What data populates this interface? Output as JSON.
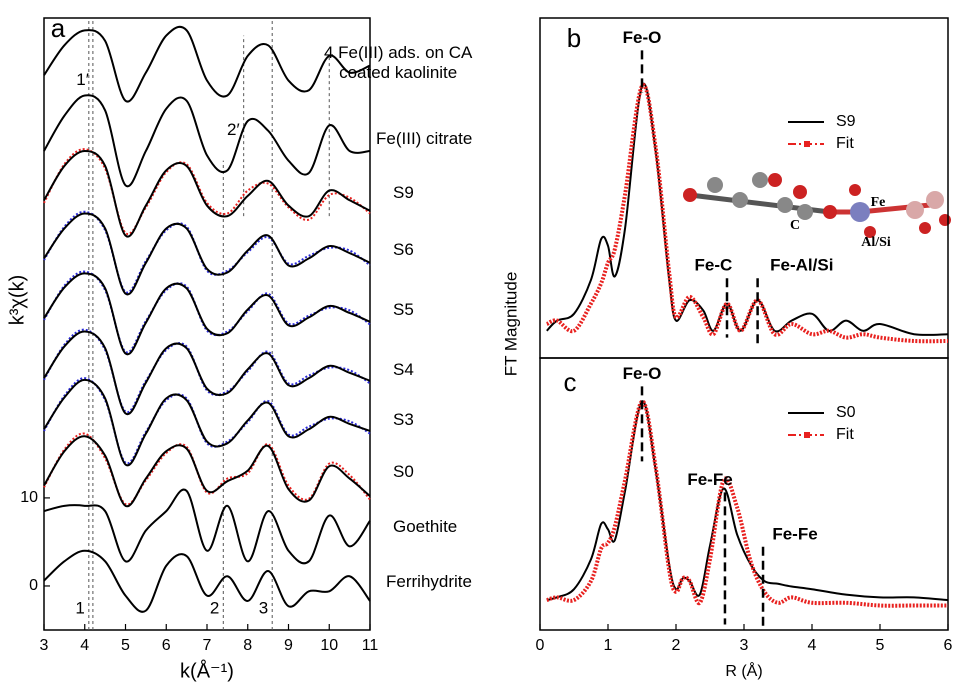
{
  "chart_data": [
    {
      "type": "line",
      "panel_label": "a",
      "xlabel": "k(Å⁻¹)",
      "ylabel": "k³χ(k)",
      "xlim": [
        3,
        11
      ],
      "ylim": [
        -5,
        64.5
      ],
      "xticks": [
        3,
        4,
        5,
        6,
        7,
        8,
        9,
        10,
        11
      ],
      "yticks": [
        0,
        10
      ],
      "x": [
        3,
        3.5,
        4,
        4.5,
        5,
        5.5,
        6,
        6.5,
        7,
        7.5,
        8,
        8.5,
        9,
        9.5,
        10,
        10.5,
        11
      ],
      "vlines": [
        {
          "x": 4.1,
          "label": "1",
          "y": -2.6,
          "y_range": [
            -5,
            64.5
          ]
        },
        {
          "x": 4.2,
          "label": "1′",
          "y": 57.4,
          "y_range": [
            -5,
            64.5
          ]
        },
        {
          "x": 7.4,
          "label": "2",
          "y": -2.6,
          "y_range": [
            -5,
            48.3
          ]
        },
        {
          "x": 7.9,
          "label": "2′",
          "y": 51.7,
          "y_range": [
            42.0,
            62.5
          ]
        },
        {
          "x": 8.6,
          "label": "3",
          "y": -2.6,
          "y_range": [
            -5,
            64.5
          ]
        },
        {
          "x": 10.0,
          "y_range": [
            42.0,
            60.2
          ]
        }
      ],
      "series": [
        {
          "name": "4 Fe(III) ads. on CA\ncoated kaolinite",
          "color": "#000000",
          "style": "solid",
          "values": [
            58.0,
            61.4,
            63.1,
            61.9,
            55.1,
            58.3,
            62.5,
            63.1,
            57.4,
            55.7,
            60.2,
            61.4,
            57.4,
            56.3,
            60.2,
            58.3,
            59.1
          ]
        },
        {
          "name": "Fe(III) citrate",
          "color": "#000000",
          "style": "solid",
          "values": [
            49.4,
            53.4,
            55.7,
            54.0,
            45.5,
            49.4,
            54.2,
            55.1,
            48.9,
            47.2,
            52.8,
            51.7,
            48.3,
            46.9,
            52.3,
            49.4,
            49.4
          ]
        },
        {
          "color": "#e8211f",
          "style": "dotted",
          "values": [
            43.5,
            47.9,
            49.6,
            47.4,
            40.1,
            43.0,
            47.0,
            47.9,
            43.5,
            42.3,
            44.9,
            45.7,
            43.0,
            41.6,
            44.4,
            44.1,
            42.3
          ]
        },
        {
          "name": "S9",
          "color": "#000000",
          "style": "solid",
          "values": [
            43.8,
            47.7,
            49.4,
            47.7,
            39.8,
            43.2,
            47.2,
            47.7,
            43.2,
            42.0,
            44.3,
            46.0,
            43.2,
            42.0,
            44.9,
            43.8,
            42.6
          ]
        },
        {
          "color": "#2a2ad8",
          "style": "dotted",
          "values": [
            37.0,
            40.8,
            42.5,
            40.4,
            33.4,
            36.9,
            40.4,
            40.8,
            35.8,
            35.8,
            37.9,
            39.6,
            36.6,
            37.5,
            38.4,
            38.1,
            36.4
          ]
        },
        {
          "name": "S6",
          "color": "#000000",
          "style": "solid",
          "values": [
            37.2,
            40.6,
            42.3,
            40.6,
            33.2,
            36.7,
            40.6,
            40.6,
            36.0,
            35.6,
            38.1,
            39.8,
            36.4,
            37.2,
            38.6,
            37.8,
            36.7
          ]
        },
        {
          "color": "#2a2ad8",
          "style": "dotted",
          "values": [
            30.2,
            34.1,
            35.7,
            33.6,
            26.6,
            30.1,
            33.6,
            34.0,
            29.0,
            28.9,
            31.2,
            33.2,
            29.8,
            30.7,
            31.6,
            31.3,
            29.7
          ]
        },
        {
          "name": "S5",
          "color": "#000000",
          "style": "solid",
          "values": [
            30.4,
            33.9,
            35.5,
            33.8,
            26.4,
            29.9,
            33.8,
            33.8,
            29.2,
            28.7,
            31.4,
            33.0,
            29.6,
            30.5,
            31.8,
            31.0,
            30.0
          ]
        },
        {
          "color": "#2a2ad8",
          "style": "dotted",
          "values": [
            23.4,
            27.4,
            29.1,
            26.8,
            19.8,
            23.3,
            26.8,
            27.2,
            22.2,
            22.1,
            24.4,
            26.6,
            23.0,
            23.9,
            24.8,
            24.5,
            23.0
          ]
        },
        {
          "name": "S4",
          "color": "#000000",
          "style": "solid",
          "values": [
            23.6,
            27.2,
            28.9,
            27.0,
            19.6,
            23.1,
            27.0,
            27.0,
            22.4,
            21.9,
            24.6,
            26.4,
            22.8,
            23.6,
            25.0,
            24.2,
            23.3
          ]
        },
        {
          "color": "#2a2ad8",
          "style": "dotted",
          "values": [
            17.6,
            21.6,
            23.6,
            21.1,
            14.0,
            17.5,
            21.1,
            21.3,
            16.2,
            16.4,
            18.6,
            21.0,
            17.2,
            18.1,
            19.0,
            18.7,
            17.3
          ]
        },
        {
          "name": "S3",
          "color": "#000000",
          "style": "solid",
          "values": [
            17.8,
            21.4,
            23.4,
            21.3,
            13.8,
            17.3,
            21.3,
            21.1,
            16.4,
            16.2,
            18.8,
            20.8,
            17.0,
            17.8,
            19.2,
            18.4,
            17.6
          ]
        },
        {
          "color": "#e8211f",
          "style": "dotted",
          "values": [
            11.2,
            15.5,
            17.3,
            14.5,
            9.3,
            12.0,
            15.1,
            15.8,
            10.6,
            12.2,
            12.8,
            16.1,
            11.4,
            9.9,
            13.9,
            12.6,
            9.8
          ]
        },
        {
          "name": "S0",
          "color": "#000000",
          "style": "solid",
          "values": [
            11.4,
            15.3,
            17.0,
            14.8,
            9.1,
            12.2,
            15.3,
            15.6,
            10.8,
            11.9,
            13.1,
            15.9,
            11.0,
            9.7,
            13.6,
            12.2,
            10.2
          ]
        },
        {
          "name": "Goethite",
          "color": "#000000",
          "style": "solid",
          "values": [
            8.5,
            9.1,
            9.1,
            8.5,
            2.8,
            6.3,
            8.5,
            10.8,
            4.0,
            9.1,
            2.8,
            8.5,
            4.0,
            2.8,
            8.0,
            4.5,
            7.4
          ]
        },
        {
          "name": "Ferrihydrite",
          "color": "#000000",
          "style": "solid",
          "values": [
            0.6,
            2.8,
            4.0,
            2.8,
            -1.1,
            -2.8,
            2.3,
            3.4,
            -1.1,
            1.1,
            -1.7,
            1.7,
            -2.3,
            -0.6,
            -0.6,
            1.1,
            -1.7
          ]
        }
      ]
    },
    {
      "type": "line",
      "panel_label": "b",
      "ylabel": "FT Magnitude",
      "xlim": [
        0,
        6
      ],
      "ylim": [
        0,
        1
      ],
      "legend": "upper right",
      "inset_labels": [
        "C",
        "Fe",
        "Al/Si"
      ],
      "x": [
        0.1,
        0.25,
        0.5,
        0.75,
        0.9,
        1.0,
        1.1,
        1.25,
        1.5,
        1.7,
        1.9,
        2.0,
        2.2,
        2.4,
        2.55,
        2.75,
        2.95,
        3.2,
        3.45,
        3.7,
        4.0,
        4.25,
        4.5,
        4.75,
        5.0,
        5.5,
        6.0
      ],
      "annotations": [
        {
          "text": "Fe-O",
          "text_x": 1.5,
          "y": 0.94,
          "x": 1.5,
          "y_end": 0.78
        },
        {
          "text": "Fe-C",
          "text_x": 2.55,
          "y": 0.27,
          "x": 2.75,
          "y_end": 0.06
        },
        {
          "text": "Fe-Al/Si",
          "text_x": 3.85,
          "y": 0.27,
          "x": 3.2,
          "y_end": 0.03
        }
      ],
      "series": [
        {
          "name": "S9",
          "color": "#000000",
          "style": "solid",
          "values": [
            0.08,
            0.11,
            0.13,
            0.23,
            0.35,
            0.33,
            0.24,
            0.38,
            0.8,
            0.61,
            0.23,
            0.11,
            0.17,
            0.14,
            0.08,
            0.16,
            0.08,
            0.17,
            0.08,
            0.11,
            0.13,
            0.08,
            0.11,
            0.08,
            0.1,
            0.07,
            0.07
          ]
        },
        {
          "name": "Fit",
          "color": "#e8211f",
          "style": "dashdot",
          "values": [
            0.1,
            0.11,
            0.08,
            0.16,
            0.22,
            0.28,
            0.32,
            0.48,
            0.8,
            0.62,
            0.25,
            0.12,
            0.18,
            0.12,
            0.07,
            0.16,
            0.08,
            0.17,
            0.07,
            0.1,
            0.07,
            0.08,
            0.06,
            0.07,
            0.06,
            0.05,
            0.05
          ]
        }
      ]
    },
    {
      "type": "line",
      "panel_label": "c",
      "xlabel": "R (Å)",
      "xlim": [
        0,
        6
      ],
      "ylim": [
        0,
        1
      ],
      "xticks": [
        0,
        1,
        2,
        3,
        4,
        5,
        6
      ],
      "legend": "upper right",
      "x": [
        0.1,
        0.25,
        0.5,
        0.75,
        0.9,
        1.0,
        1.1,
        1.25,
        1.5,
        1.7,
        1.9,
        2.0,
        2.1,
        2.2,
        2.35,
        2.5,
        2.7,
        2.9,
        3.1,
        3.3,
        3.5,
        3.7,
        4.0,
        4.5,
        5.0,
        5.5,
        6.0
      ],
      "annotations": [
        {
          "text": "Fe-O",
          "text_x": 1.5,
          "y": 0.94,
          "x": 1.5,
          "y_end": 0.62
        },
        {
          "text": "Fe-Fe",
          "text_x": 2.5,
          "y": 0.55,
          "x": 2.72,
          "y_end": 0.02
        },
        {
          "text": "Fe-Fe",
          "text_x": 3.75,
          "y": 0.35,
          "x": 3.28,
          "y_end": 0.0
        }
      ],
      "series": [
        {
          "name": "S0",
          "color": "#000000",
          "style": "solid",
          "values": [
            0.11,
            0.12,
            0.15,
            0.26,
            0.39,
            0.37,
            0.33,
            0.51,
            0.84,
            0.59,
            0.24,
            0.15,
            0.19,
            0.18,
            0.13,
            0.31,
            0.52,
            0.35,
            0.24,
            0.18,
            0.17,
            0.16,
            0.15,
            0.13,
            0.12,
            0.12,
            0.11
          ]
        },
        {
          "name": "Fit",
          "color": "#e8211f",
          "style": "dashdot",
          "values": [
            0.11,
            0.12,
            0.11,
            0.18,
            0.3,
            0.32,
            0.38,
            0.55,
            0.84,
            0.6,
            0.22,
            0.14,
            0.19,
            0.18,
            0.1,
            0.26,
            0.55,
            0.45,
            0.25,
            0.14,
            0.1,
            0.12,
            0.1,
            0.1,
            0.09,
            0.09,
            0.09
          ]
        }
      ]
    }
  ]
}
